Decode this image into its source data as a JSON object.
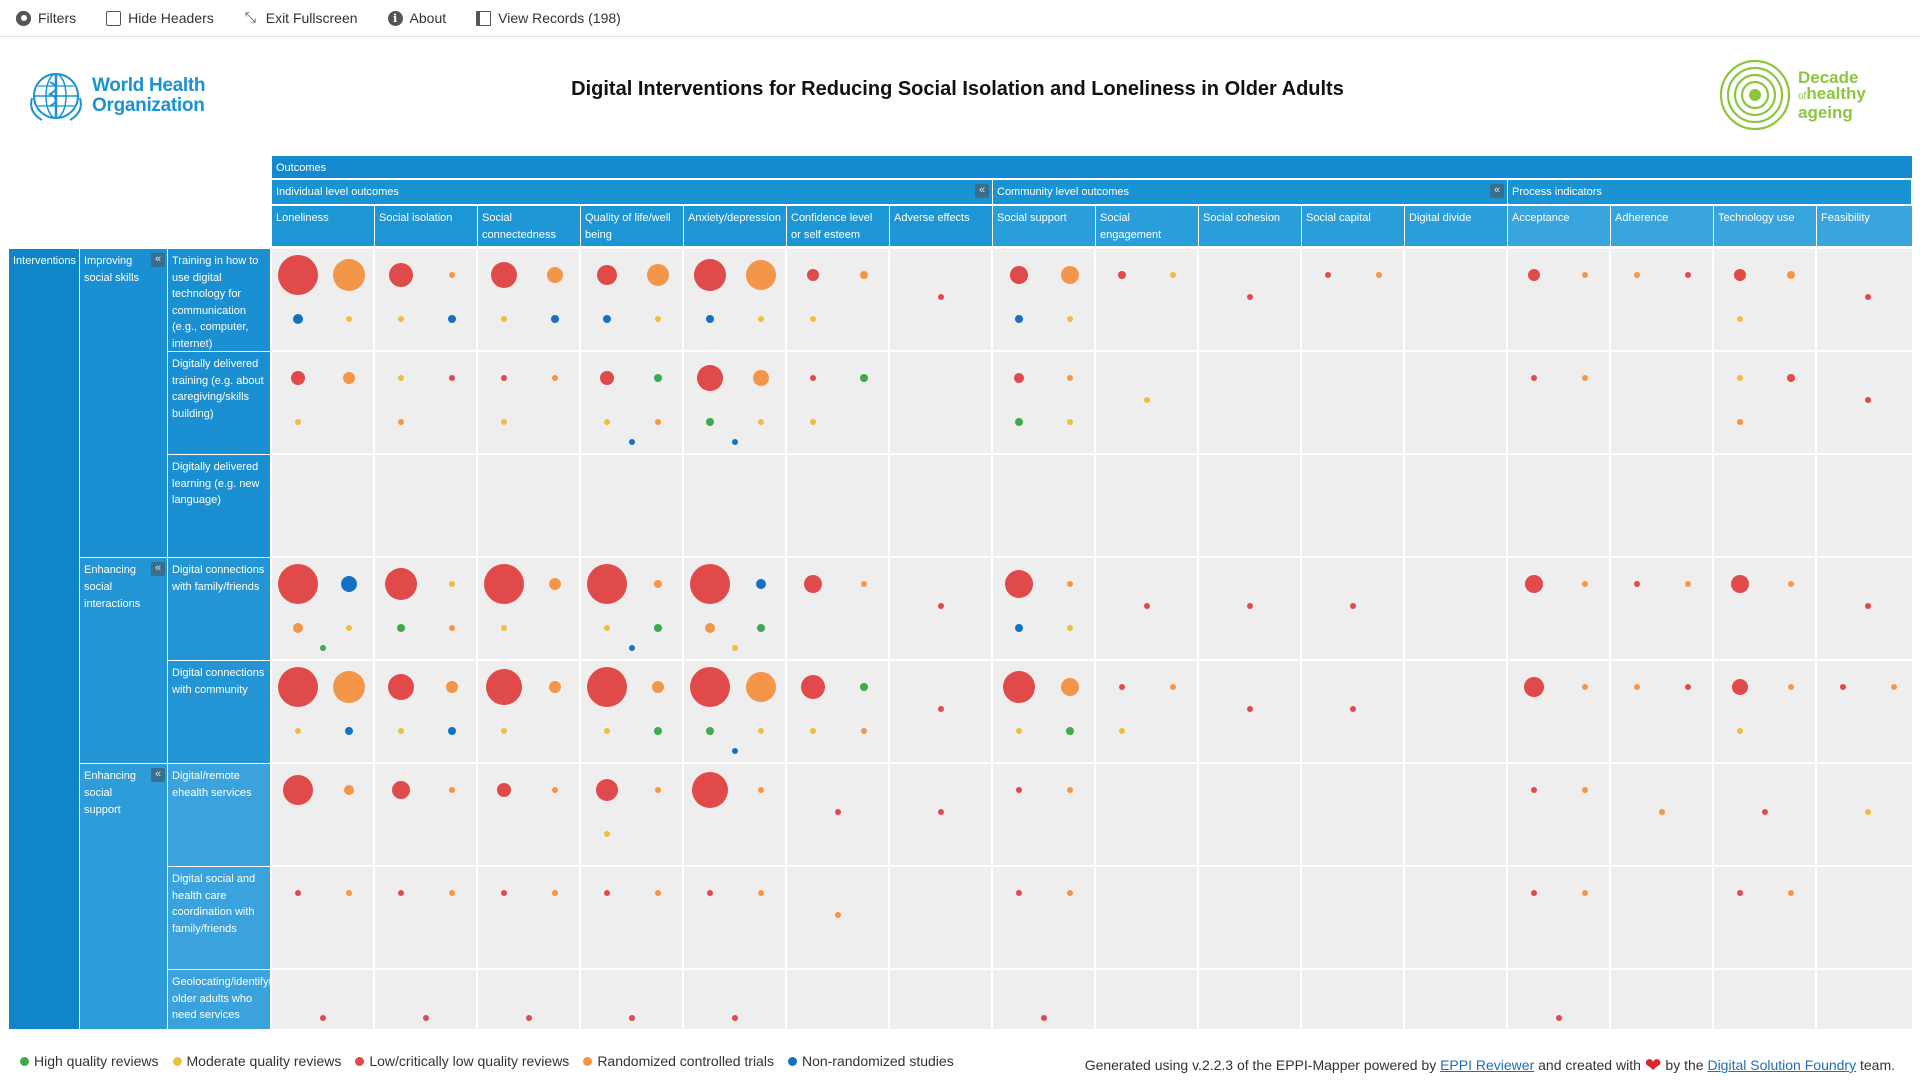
{
  "toolbar": [
    {
      "id": "filters",
      "label": "Filters",
      "icon": "gear-icon"
    },
    {
      "id": "hide-headers",
      "label": "Hide Headers",
      "icon": "checkbox-icon"
    },
    {
      "id": "exit-fullscreen",
      "label": "Exit Fullscreen",
      "icon": "compress-icon"
    },
    {
      "id": "about",
      "label": "About",
      "icon": "info-icon"
    },
    {
      "id": "view-records",
      "label": "View Records (198)",
      "icon": "book-icon"
    }
  ],
  "header": {
    "title": "Digital Interventions for Reducing Social Isolation and Loneliness in Older Adults",
    "who_logo_line1": "World Health",
    "who_logo_line2": "Organization",
    "decade_logo_line1": "Decade",
    "decade_logo_of": "of",
    "decade_logo_line2": "healthy",
    "decade_logo_line3": "ageing"
  },
  "colors": {
    "header_band": "#1a8fd1",
    "high": "#3daa4b",
    "moderate": "#efbe3e",
    "low": "#e04a4a",
    "rct": "#f4964a",
    "nrs": "#1571c4",
    "cell": "#eeeeee"
  },
  "outcomes_label": "Outcomes",
  "outcome_groups": [
    {
      "label": "Individual level outcomes",
      "count": 7
    },
    {
      "label": "Community level outcomes",
      "count": 5
    },
    {
      "label": "Process indicators",
      "count": 4
    }
  ],
  "columns": [
    "Loneliness",
    "Social isolation",
    "Social connectedness",
    "Quality of life/well being",
    "Anxiety/depression",
    "Confidence level or self esteem",
    "Adverse effects",
    "Social support",
    "Social engagement",
    "Social cohesion",
    "Social capital",
    "Digital divide",
    "Acceptance",
    "Adherence",
    "Technology use",
    "Feasibility"
  ],
  "interventions_label": "Interventions",
  "intervention_groups": [
    {
      "label": "Improving social skills",
      "rows": 3
    },
    {
      "label": "Enhancing social interactions",
      "rows": 2
    },
    {
      "label": "Enhancing social support",
      "rows": 3
    }
  ],
  "rows": [
    "Training in how to use digital technology for communication (e.g., computer, internet)",
    "Digitally delivered training (e.g. about caregiving/skills building)",
    "Digitally delivered learning (e.g. new language)",
    "Digital connections with family/friends",
    "Digital connections with community",
    "Digital/remote ehealth services",
    "Digital social and health care coordination with family/friends",
    "Geolocating/identifying older adults who need services"
  ],
  "map_cells": [
    {
      "row": 0,
      "col": 0,
      "dots": [
        [
          "low",
          20
        ],
        [
          "rct",
          16
        ],
        [
          "nrs",
          5
        ],
        [
          "moderate",
          3
        ]
      ]
    },
    {
      "row": 0,
      "col": 1,
      "dots": [
        [
          "low",
          12
        ],
        [
          "rct",
          3
        ],
        [
          "moderate",
          3
        ],
        [
          "nrs",
          4
        ]
      ]
    },
    {
      "row": 0,
      "col": 2,
      "dots": [
        [
          "low",
          13
        ],
        [
          "rct",
          8
        ],
        [
          "moderate",
          3
        ],
        [
          "nrs",
          4
        ]
      ]
    },
    {
      "row": 0,
      "col": 3,
      "dots": [
        [
          "low",
          10
        ],
        [
          "rct",
          11
        ],
        [
          "nrs",
          4
        ],
        [
          "moderate",
          3
        ]
      ]
    },
    {
      "row": 0,
      "col": 4,
      "dots": [
        [
          "low",
          16
        ],
        [
          "rct",
          15
        ],
        [
          "nrs",
          4
        ],
        [
          "moderate",
          3
        ]
      ]
    },
    {
      "row": 0,
      "col": 5,
      "dots": [
        [
          "low",
          6
        ],
        [
          "rct",
          4
        ],
        [
          "moderate",
          3
        ]
      ]
    },
    {
      "row": 0,
      "col": 6,
      "dots": [
        [
          "low",
          3
        ]
      ]
    },
    {
      "row": 0,
      "col": 7,
      "dots": [
        [
          "low",
          9
        ],
        [
          "rct",
          9
        ],
        [
          "nrs",
          4
        ],
        [
          "moderate",
          3
        ]
      ]
    },
    {
      "row": 0,
      "col": 8,
      "dots": [
        [
          "low",
          4
        ],
        [
          "moderate",
          3
        ]
      ]
    },
    {
      "row": 0,
      "col": 9,
      "dots": [
        [
          "low",
          3
        ]
      ]
    },
    {
      "row": 0,
      "col": 10,
      "dots": [
        [
          "low",
          3
        ],
        [
          "rct",
          3
        ]
      ]
    },
    {
      "row": 0,
      "col": 12,
      "dots": [
        [
          "low",
          6
        ],
        [
          "rct",
          3
        ]
      ]
    },
    {
      "row": 0,
      "col": 13,
      "dots": [
        [
          "rct",
          3
        ],
        [
          "low",
          3
        ]
      ]
    },
    {
      "row": 0,
      "col": 14,
      "dots": [
        [
          "low",
          6
        ],
        [
          "rct",
          4
        ],
        [
          "moderate",
          3
        ]
      ]
    },
    {
      "row": 0,
      "col": 15,
      "dots": [
        [
          "low",
          3
        ]
      ]
    },
    {
      "row": 1,
      "col": 0,
      "dots": [
        [
          "low",
          7
        ],
        [
          "rct",
          6
        ],
        [
          "moderate",
          3
        ]
      ]
    },
    {
      "row": 1,
      "col": 1,
      "dots": [
        [
          "moderate",
          3
        ],
        [
          "low",
          3
        ],
        [
          "rct",
          3
        ]
      ]
    },
    {
      "row": 1,
      "col": 2,
      "dots": [
        [
          "low",
          3
        ],
        [
          "rct",
          3
        ],
        [
          "moderate",
          3
        ]
      ]
    },
    {
      "row": 1,
      "col": 3,
      "dots": [
        [
          "low",
          7
        ],
        [
          "high",
          4
        ],
        [
          "moderate",
          3
        ],
        [
          "rct",
          3
        ],
        [
          "nrs",
          3
        ]
      ]
    },
    {
      "row": 1,
      "col": 4,
      "dots": [
        [
          "low",
          13
        ],
        [
          "rct",
          8
        ],
        [
          "high",
          4
        ],
        [
          "moderate",
          3
        ],
        [
          "nrs",
          3
        ]
      ]
    },
    {
      "row": 1,
      "col": 5,
      "dots": [
        [
          "low",
          3
        ],
        [
          "high",
          4
        ],
        [
          "moderate",
          3
        ]
      ]
    },
    {
      "row": 1,
      "col": 7,
      "dots": [
        [
          "low",
          5
        ],
        [
          "rct",
          3
        ],
        [
          "high",
          4
        ],
        [
          "moderate",
          3
        ]
      ]
    },
    {
      "row": 1,
      "col": 8,
      "dots": [
        [
          "moderate",
          3
        ]
      ]
    },
    {
      "row": 1,
      "col": 12,
      "dots": [
        [
          "low",
          3
        ],
        [
          "rct",
          3
        ]
      ]
    },
    {
      "row": 1,
      "col": 14,
      "dots": [
        [
          "moderate",
          3
        ],
        [
          "low",
          4
        ],
        [
          "rct",
          3
        ]
      ]
    },
    {
      "row": 1,
      "col": 15,
      "dots": [
        [
          "low",
          3
        ]
      ]
    },
    {
      "row": 3,
      "col": 0,
      "dots": [
        [
          "low",
          20
        ],
        [
          "nrs",
          8
        ],
        [
          "rct",
          5
        ],
        [
          "moderate",
          3
        ],
        [
          "high",
          3
        ]
      ]
    },
    {
      "row": 3,
      "col": 1,
      "dots": [
        [
          "low",
          16
        ],
        [
          "moderate",
          3
        ],
        [
          "high",
          4
        ],
        [
          "rct",
          3
        ]
      ]
    },
    {
      "row": 3,
      "col": 2,
      "dots": [
        [
          "low",
          20
        ],
        [
          "rct",
          6
        ],
        [
          "moderate",
          3
        ]
      ]
    },
    {
      "row": 3,
      "col": 3,
      "dots": [
        [
          "low",
          20
        ],
        [
          "rct",
          4
        ],
        [
          "moderate",
          3
        ],
        [
          "high",
          4
        ],
        [
          "nrs",
          3
        ]
      ]
    },
    {
      "row": 3,
      "col": 4,
      "dots": [
        [
          "low",
          20
        ],
        [
          "nrs",
          5
        ],
        [
          "rct",
          5
        ],
        [
          "high",
          4
        ],
        [
          "moderate",
          3
        ]
      ]
    },
    {
      "row": 3,
      "col": 5,
      "dots": [
        [
          "low",
          9
        ],
        [
          "rct",
          3
        ]
      ]
    },
    {
      "row": 3,
      "col": 6,
      "dots": [
        [
          "low",
          3
        ]
      ]
    },
    {
      "row": 3,
      "col": 7,
      "dots": [
        [
          "low",
          14
        ],
        [
          "rct",
          3
        ],
        [
          "nrs",
          4
        ],
        [
          "moderate",
          3
        ]
      ]
    },
    {
      "row": 3,
      "col": 8,
      "dots": [
        [
          "low",
          3
        ]
      ]
    },
    {
      "row": 3,
      "col": 9,
      "dots": [
        [
          "low",
          3
        ]
      ]
    },
    {
      "row": 3,
      "col": 10,
      "dots": [
        [
          "low",
          3
        ]
      ]
    },
    {
      "row": 3,
      "col": 12,
      "dots": [
        [
          "low",
          9
        ],
        [
          "rct",
          3
        ]
      ]
    },
    {
      "row": 3,
      "col": 13,
      "dots": [
        [
          "low",
          3
        ],
        [
          "rct",
          3
        ]
      ]
    },
    {
      "row": 3,
      "col": 14,
      "dots": [
        [
          "low",
          9
        ],
        [
          "rct",
          3
        ]
      ]
    },
    {
      "row": 3,
      "col": 15,
      "dots": [
        [
          "low",
          3
        ]
      ]
    },
    {
      "row": 4,
      "col": 0,
      "dots": [
        [
          "low",
          20
        ],
        [
          "rct",
          16
        ],
        [
          "moderate",
          3
        ],
        [
          "nrs",
          4
        ]
      ]
    },
    {
      "row": 4,
      "col": 1,
      "dots": [
        [
          "low",
          13
        ],
        [
          "rct",
          6
        ],
        [
          "moderate",
          3
        ],
        [
          "nrs",
          4
        ]
      ]
    },
    {
      "row": 4,
      "col": 2,
      "dots": [
        [
          "low",
          18
        ],
        [
          "rct",
          6
        ],
        [
          "moderate",
          3
        ]
      ]
    },
    {
      "row": 4,
      "col": 3,
      "dots": [
        [
          "low",
          20
        ],
        [
          "rct",
          6
        ],
        [
          "moderate",
          3
        ],
        [
          "high",
          4
        ]
      ]
    },
    {
      "row": 4,
      "col": 4,
      "dots": [
        [
          "low",
          20
        ],
        [
          "rct",
          15
        ],
        [
          "high",
          4
        ],
        [
          "moderate",
          3
        ],
        [
          "nrs",
          3
        ]
      ]
    },
    {
      "row": 4,
      "col": 5,
      "dots": [
        [
          "low",
          12
        ],
        [
          "high",
          4
        ],
        [
          "moderate",
          3
        ],
        [
          "rct",
          3
        ]
      ]
    },
    {
      "row": 4,
      "col": 6,
      "dots": [
        [
          "low",
          3
        ]
      ]
    },
    {
      "row": 4,
      "col": 7,
      "dots": [
        [
          "low",
          16
        ],
        [
          "rct",
          9
        ],
        [
          "moderate",
          3
        ],
        [
          "high",
          4
        ]
      ]
    },
    {
      "row": 4,
      "col": 8,
      "dots": [
        [
          "low",
          3
        ],
        [
          "rct",
          3
        ],
        [
          "moderate",
          3
        ]
      ]
    },
    {
      "row": 4,
      "col": 9,
      "dots": [
        [
          "low",
          3
        ]
      ]
    },
    {
      "row": 4,
      "col": 10,
      "dots": [
        [
          "low",
          3
        ]
      ]
    },
    {
      "row": 4,
      "col": 12,
      "dots": [
        [
          "low",
          10
        ],
        [
          "rct",
          3
        ]
      ]
    },
    {
      "row": 4,
      "col": 13,
      "dots": [
        [
          "rct",
          3
        ],
        [
          "low",
          3
        ]
      ]
    },
    {
      "row": 4,
      "col": 14,
      "dots": [
        [
          "low",
          8
        ],
        [
          "rct",
          3
        ],
        [
          "moderate",
          3
        ]
      ]
    },
    {
      "row": 4,
      "col": 15,
      "dots": [
        [
          "low",
          3
        ],
        [
          "rct",
          3
        ]
      ]
    },
    {
      "row": 5,
      "col": 0,
      "dots": [
        [
          "low",
          15
        ],
        [
          "rct",
          5
        ]
      ]
    },
    {
      "row": 5,
      "col": 1,
      "dots": [
        [
          "low",
          9
        ],
        [
          "rct",
          3
        ]
      ]
    },
    {
      "row": 5,
      "col": 2,
      "dots": [
        [
          "low",
          7
        ],
        [
          "rct",
          3
        ]
      ]
    },
    {
      "row": 5,
      "col": 3,
      "dots": [
        [
          "low",
          11
        ],
        [
          "rct",
          3
        ],
        [
          "moderate",
          3
        ]
      ]
    },
    {
      "row": 5,
      "col": 4,
      "dots": [
        [
          "low",
          18
        ],
        [
          "rct",
          3
        ]
      ]
    },
    {
      "row": 5,
      "col": 5,
      "dots": [
        [
          "low",
          3
        ]
      ]
    },
    {
      "row": 5,
      "col": 6,
      "dots": [
        [
          "low",
          3
        ]
      ]
    },
    {
      "row": 5,
      "col": 7,
      "dots": [
        [
          "low",
          3
        ],
        [
          "rct",
          3
        ]
      ]
    },
    {
      "row": 5,
      "col": 12,
      "dots": [
        [
          "low",
          3
        ],
        [
          "rct",
          3
        ]
      ]
    },
    {
      "row": 5,
      "col": 13,
      "dots": [
        [
          "rct",
          3
        ]
      ]
    },
    {
      "row": 5,
      "col": 14,
      "dots": [
        [
          "low",
          3
        ]
      ]
    },
    {
      "row": 5,
      "col": 15,
      "dots": [
        [
          "moderate",
          3
        ]
      ]
    },
    {
      "row": 6,
      "col": 0,
      "dots": [
        [
          "low",
          3
        ],
        [
          "rct",
          3
        ]
      ]
    },
    {
      "row": 6,
      "col": 1,
      "dots": [
        [
          "low",
          3
        ],
        [
          "rct",
          3
        ]
      ]
    },
    {
      "row": 6,
      "col": 2,
      "dots": [
        [
          "low",
          3
        ],
        [
          "rct",
          3
        ]
      ]
    },
    {
      "row": 6,
      "col": 3,
      "dots": [
        [
          "low",
          3
        ],
        [
          "rct",
          3
        ]
      ]
    },
    {
      "row": 6,
      "col": 4,
      "dots": [
        [
          "low",
          3
        ],
        [
          "rct",
          3
        ]
      ]
    },
    {
      "row": 6,
      "col": 5,
      "dots": [
        [
          "rct",
          3
        ]
      ]
    },
    {
      "row": 6,
      "col": 7,
      "dots": [
        [
          "low",
          3
        ],
        [
          "rct",
          3
        ]
      ]
    },
    {
      "row": 6,
      "col": 12,
      "dots": [
        [
          "low",
          3
        ],
        [
          "rct",
          3
        ]
      ]
    },
    {
      "row": 6,
      "col": 14,
      "dots": [
        [
          "low",
          3
        ],
        [
          "rct",
          3
        ]
      ]
    },
    {
      "row": 7,
      "col": 0,
      "dots": [
        [
          "low",
          3
        ]
      ]
    },
    {
      "row": 7,
      "col": 1,
      "dots": [
        [
          "low",
          3
        ]
      ]
    },
    {
      "row": 7,
      "col": 2,
      "dots": [
        [
          "low",
          3
        ]
      ]
    },
    {
      "row": 7,
      "col": 3,
      "dots": [
        [
          "low",
          3
        ]
      ]
    },
    {
      "row": 7,
      "col": 4,
      "dots": [
        [
          "low",
          3
        ]
      ]
    },
    {
      "row": 7,
      "col": 7,
      "dots": [
        [
          "low",
          3
        ]
      ]
    },
    {
      "row": 7,
      "col": 12,
      "dots": [
        [
          "low",
          3
        ]
      ]
    }
  ],
  "legend": [
    {
      "key": "high",
      "label": "High quality reviews"
    },
    {
      "key": "moderate",
      "label": "Moderate quality reviews"
    },
    {
      "key": "low",
      "label": "Low/critically low quality reviews"
    },
    {
      "key": "rct",
      "label": "Randomized controlled trials"
    },
    {
      "key": "nrs",
      "label": "Non-randomized studies"
    }
  ],
  "credits": {
    "prefix": "Generated using v.2.2.3 of the EPPI-Mapper powered by ",
    "link1": "EPPI Reviewer",
    "middle": " and created with ",
    "by": " by the ",
    "link2": "Digital Solution Foundry",
    "suffix": " team."
  }
}
